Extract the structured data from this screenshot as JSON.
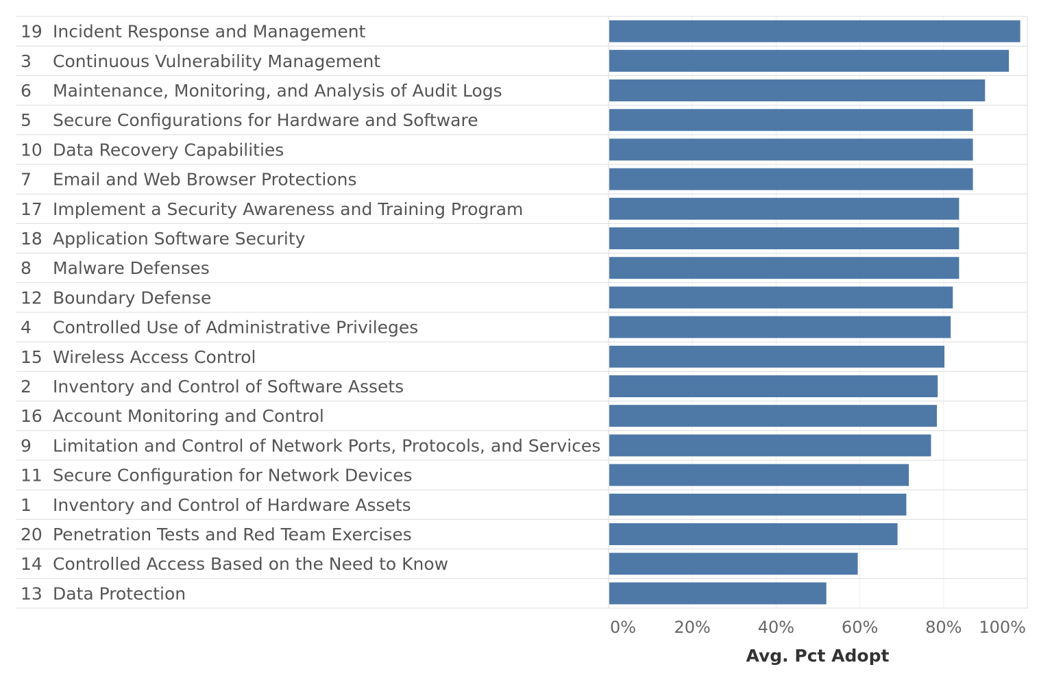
{
  "chart_data": {
    "type": "bar",
    "orientation": "horizontal",
    "bar_color": "#4e79a7",
    "xlabel": "Avg. Pct Adopt",
    "xlim": [
      0,
      100
    ],
    "x_ticks": [
      "0%",
      "20%",
      "40%",
      "60%",
      "80%",
      "100%"
    ],
    "grid": true,
    "rows": [
      {
        "num": "19",
        "label": "Incident Response and Management",
        "value": 98.3
      },
      {
        "num": "3",
        "label": "Continuous Vulnerability Management",
        "value": 95.6
      },
      {
        "num": "6",
        "label": "Maintenance, Monitoring, and Analysis of Audit Logs",
        "value": 89.9
      },
      {
        "num": "5",
        "label": "Secure Configurations for Hardware and Software",
        "value": 87.0
      },
      {
        "num": "10",
        "label": "Data Recovery Capabilities",
        "value": 87.0
      },
      {
        "num": "7",
        "label": "Email and Web Browser Protections",
        "value": 87.0
      },
      {
        "num": "17",
        "label": "Implement a Security Awareness and Training Program",
        "value": 83.7
      },
      {
        "num": "18",
        "label": "Application Software Security",
        "value": 83.7
      },
      {
        "num": "8",
        "label": "Malware Defenses",
        "value": 83.7
      },
      {
        "num": "12",
        "label": "Boundary Defense",
        "value": 82.2
      },
      {
        "num": "4",
        "label": "Controlled Use of Administrative Privileges",
        "value": 81.7
      },
      {
        "num": "15",
        "label": "Wireless Access Control",
        "value": 80.2
      },
      {
        "num": "2",
        "label": "Inventory and Control of Software Assets",
        "value": 78.6
      },
      {
        "num": "16",
        "label": "Account Monitoring and Control",
        "value": 78.4
      },
      {
        "num": "9",
        "label": "Limitation and Control of Network Ports, Protocols, and Services",
        "value": 77.0
      },
      {
        "num": "11",
        "label": "Secure Configuration for Network Devices",
        "value": 71.7
      },
      {
        "num": "1",
        "label": "Inventory and Control of Hardware Assets",
        "value": 71.1
      },
      {
        "num": "20",
        "label": "Penetration Tests and Red Team Exercises",
        "value": 69.0
      },
      {
        "num": "14",
        "label": "Controlled Access Based on the Need to Know",
        "value": 59.5
      },
      {
        "num": "13",
        "label": "Data Protection",
        "value": 52.0
      }
    ]
  }
}
